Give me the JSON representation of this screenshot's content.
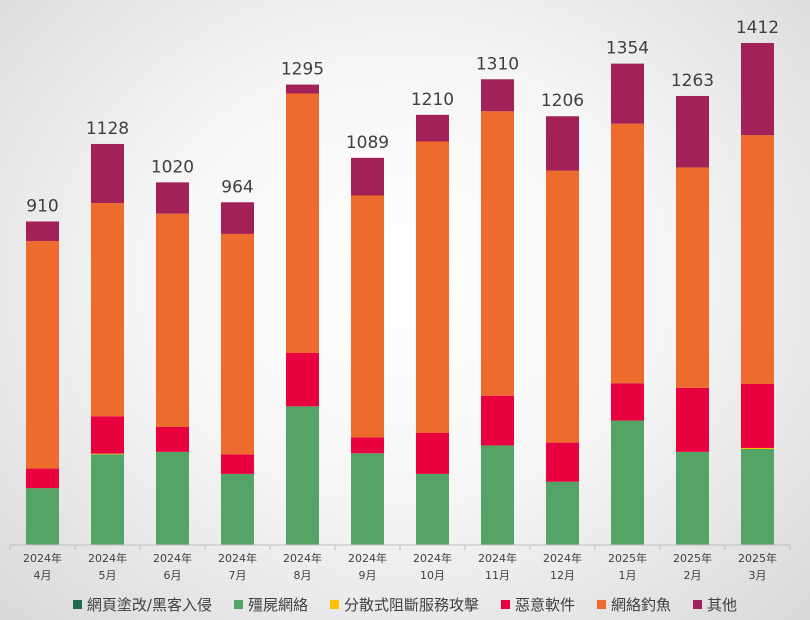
{
  "chart_data": {
    "type": "bar",
    "stacked": true,
    "categories": [
      "2024年 4月",
      "2024年 5月",
      "2024年 6月",
      "2024年 7月",
      "2024年 8月",
      "2024年 9月",
      "2024年 10月",
      "2024年 11月",
      "2024年 12月",
      "2025年 1月",
      "2025年 2月",
      "2025年 3月"
    ],
    "category_lines": [
      [
        "2024年",
        "4月"
      ],
      [
        "2024年",
        "5月"
      ],
      [
        "2024年",
        "6月"
      ],
      [
        "2024年",
        "7月"
      ],
      [
        "2024年",
        "8月"
      ],
      [
        "2024年",
        "9月"
      ],
      [
        "2024年",
        "10月"
      ],
      [
        "2024年",
        "11月"
      ],
      [
        "2024年",
        "12月"
      ],
      [
        "2025年",
        "1月"
      ],
      [
        "2025年",
        "2月"
      ],
      [
        "2025年",
        "3月"
      ]
    ],
    "totals": [
      910,
      1128,
      1020,
      964,
      1295,
      1089,
      1210,
      1310,
      1206,
      1354,
      1263,
      1412
    ],
    "series": [
      {
        "name": "網頁塗改/黑客入侵",
        "color": "#1e6b4f",
        "values": [
          0,
          0,
          0,
          0,
          0,
          0,
          0,
          0,
          0,
          0,
          0,
          0
        ]
      },
      {
        "name": "殭屍網絡",
        "color": "#54a465",
        "values": [
          160,
          255,
          262,
          200,
          390,
          258,
          200,
          280,
          178,
          350,
          262,
          270
        ]
      },
      {
        "name": "分散式阻斷服務攻擊",
        "color": "#ffc000",
        "values": [
          0,
          2,
          0,
          0,
          0,
          0,
          0,
          0,
          0,
          0,
          0,
          3
        ]
      },
      {
        "name": "惡意軟件",
        "color": "#e8003f",
        "values": [
          55,
          105,
          70,
          55,
          150,
          45,
          115,
          140,
          110,
          105,
          180,
          180
        ]
      },
      {
        "name": "網絡釣魚",
        "color": "#ec6b2d",
        "values": [
          640,
          600,
          600,
          620,
          730,
          680,
          820,
          800,
          765,
          730,
          620,
          700
        ]
      },
      {
        "name": "其他",
        "color": "#a32159",
        "values": [
          55,
          166,
          88,
          89,
          25,
          106,
          75,
          90,
          153,
          169,
          201,
          259
        ]
      }
    ],
    "ylim": [
      0,
      1412
    ],
    "legend_position": "bottom",
    "grid": false
  }
}
